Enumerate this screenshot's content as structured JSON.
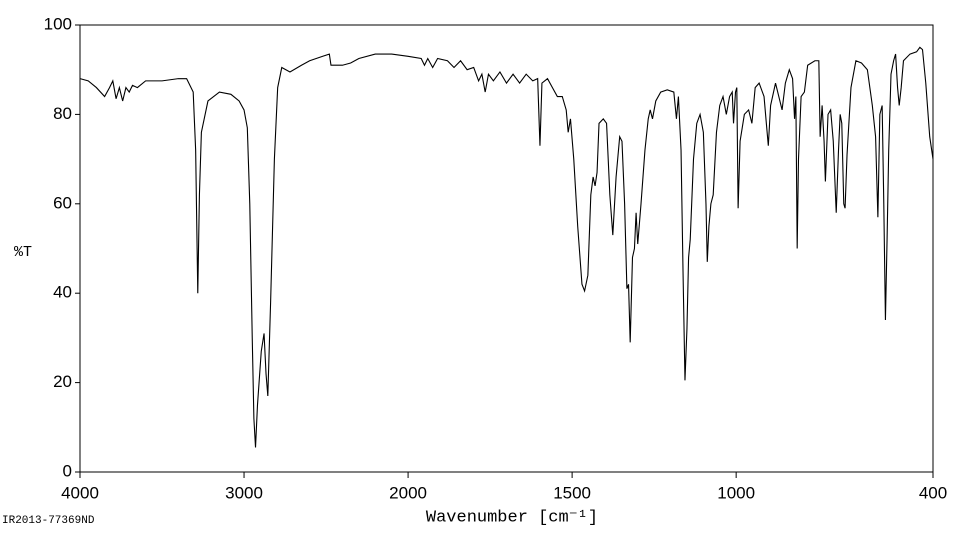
{
  "chart_data": {
    "type": "line",
    "ylabel": "%T",
    "xlabel": "Wavenumber [cm⁻¹]",
    "footnote": "IR2013-77369ND",
    "xlim": [
      4000,
      400
    ],
    "ylim": [
      0,
      100
    ],
    "xticks": [
      4000,
      3000,
      2000,
      1500,
      1000,
      400
    ],
    "yticks": [
      0,
      20,
      40,
      60,
      80,
      100
    ],
    "xscale": {
      "break": 2000,
      "factor": 2
    },
    "color": "#000000",
    "x": [
      4000,
      3950,
      3900,
      3850,
      3820,
      3800,
      3780,
      3760,
      3740,
      3720,
      3700,
      3680,
      3650,
      3600,
      3500,
      3400,
      3350,
      3310,
      3295,
      3282,
      3272,
      3260,
      3220,
      3150,
      3080,
      3030,
      3000,
      2980,
      2965,
      2950,
      2940,
      2930,
      2918,
      2895,
      2878,
      2866,
      2855,
      2838,
      2815,
      2795,
      2770,
      2720,
      2650,
      2600,
      2520,
      2480,
      2470,
      2400,
      2350,
      2300,
      2200,
      2100,
      2000,
      1960,
      1950,
      1940,
      1925,
      1910,
      1880,
      1860,
      1840,
      1820,
      1800,
      1785,
      1775,
      1765,
      1755,
      1740,
      1720,
      1700,
      1680,
      1660,
      1640,
      1620,
      1605,
      1598,
      1592,
      1575,
      1560,
      1545,
      1530,
      1518,
      1512,
      1505,
      1495,
      1483,
      1470,
      1462,
      1452,
      1443,
      1436,
      1430,
      1424,
      1418,
      1405,
      1395,
      1385,
      1376,
      1366,
      1355,
      1348,
      1340,
      1333,
      1328,
      1323,
      1316,
      1310,
      1305,
      1300,
      1290,
      1278,
      1268,
      1262,
      1255,
      1245,
      1230,
      1210,
      1190,
      1182,
      1176,
      1168,
      1162,
      1156,
      1150,
      1145,
      1140,
      1130,
      1120,
      1110,
      1100,
      1092,
      1088,
      1083,
      1077,
      1070,
      1060,
      1050,
      1040,
      1030,
      1020,
      1012,
      1008,
      1002,
      998,
      994,
      988,
      975,
      962,
      952,
      942,
      930,
      915,
      908,
      902,
      895,
      880,
      870,
      860,
      850,
      838,
      828,
      822,
      818,
      814,
      810,
      802,
      792,
      782,
      760,
      748,
      744,
      738,
      732,
      728,
      720,
      712,
      704,
      695,
      688,
      683,
      678,
      672,
      668,
      662,
      650,
      635,
      618,
      600,
      585,
      575,
      568,
      562,
      555,
      550,
      545,
      540,
      535,
      528,
      520,
      514,
      508,
      503,
      497,
      490,
      470,
      450,
      440,
      432,
      422,
      410,
      400
    ],
    "values": [
      88,
      87.5,
      86,
      84,
      86,
      87.5,
      83.5,
      86,
      83,
      86,
      85,
      86.5,
      86,
      87.5,
      87.5,
      88,
      88,
      85,
      72,
      40,
      62,
      76,
      83,
      85,
      84.5,
      83,
      81,
      77,
      60,
      30,
      12,
      5.5,
      15,
      27,
      31,
      22,
      17,
      38,
      70,
      86,
      90.5,
      89.5,
      91,
      92,
      93,
      93.5,
      91,
      91,
      91.5,
      92.5,
      93.5,
      93.5,
      93,
      92.5,
      91,
      92.5,
      90.5,
      92.5,
      92,
      90.5,
      92,
      90,
      90.5,
      87.5,
      89,
      85,
      89,
      87.5,
      89.5,
      87,
      89,
      87,
      89,
      87.5,
      88,
      73,
      87,
      88,
      86,
      84,
      84,
      81,
      76,
      79,
      70,
      55,
      42,
      40.5,
      44,
      62,
      66,
      64,
      67,
      78,
      79,
      78,
      62,
      53,
      66,
      75,
      74,
      60,
      41,
      42,
      29,
      48,
      50,
      58,
      51,
      60,
      72,
      79,
      81,
      79,
      83,
      85,
      85.5,
      85,
      79,
      84,
      72,
      45,
      20.5,
      32,
      48,
      52,
      70,
      78,
      80,
      76,
      60,
      47,
      55,
      60,
      62,
      76,
      82,
      84,
      80,
      84,
      85,
      78,
      85,
      86,
      59,
      74,
      80,
      81,
      78,
      86,
      87,
      84,
      78,
      73,
      82,
      87,
      84,
      81,
      87,
      90,
      88,
      79,
      84,
      50,
      70,
      84,
      85,
      91,
      92,
      92,
      75,
      82,
      74,
      65,
      80,
      81,
      74,
      58,
      72,
      80,
      78,
      60,
      59,
      71,
      86,
      92,
      91.5,
      90,
      82,
      75,
      57,
      80,
      82,
      60,
      34,
      52,
      72,
      89,
      92,
      93.5,
      86,
      82,
      86,
      92,
      93.5,
      94,
      95,
      94.5,
      87,
      75,
      70
    ]
  }
}
